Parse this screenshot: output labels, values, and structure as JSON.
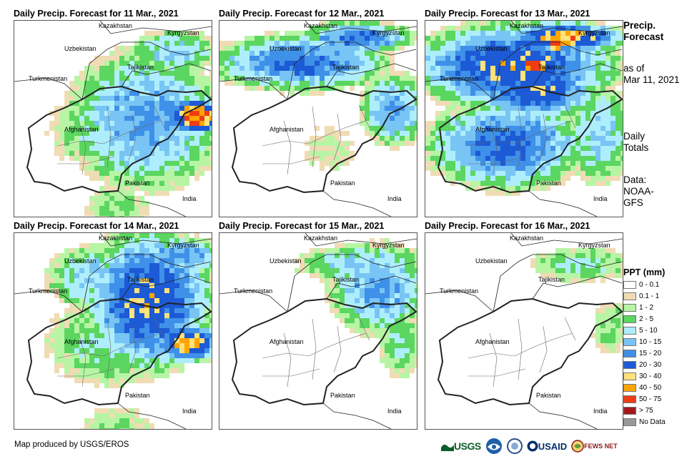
{
  "panels": [
    {
      "title": "Daily Precip. Forecast for 11 Mar., 2021"
    },
    {
      "title": "Daily Precip. Forecast for 12 Mar., 2021"
    },
    {
      "title": "Daily Precip. Forecast for 13 Mar., 2021"
    },
    {
      "title": "Daily Precip. Forecast for 14 Mar., 2021"
    },
    {
      "title": "Daily Precip. Forecast for 15 Mar., 2021"
    },
    {
      "title": "Daily Precip. Forecast for 16 Mar., 2021"
    }
  ],
  "map_labels": {
    "kazakhstan": "Kazakhstan",
    "kyrgyzstan": "Kyrgyzstan",
    "uzbekistan": "Uzbekistan",
    "tajikistan": "Tajikistan",
    "turkmenistan": "Turkmenistan",
    "afghanistan": "Afghanistan",
    "pakistan": "Pakistan",
    "india": "India"
  },
  "sidebar": {
    "heading_line1": "Precip.",
    "heading_line2": "Forecast",
    "asof_line1": "as of",
    "asof_line2": "Mar 11, 2021",
    "totals_line1": "Daily",
    "totals_line2": "Totals",
    "data_line1": "Data:",
    "data_line2": "NOAA-",
    "data_line3": "GFS"
  },
  "legend": {
    "title": "PPT (mm)",
    "items": [
      {
        "label": "0 - 0.1",
        "color": "#ffffff"
      },
      {
        "label": "0.1 - 1",
        "color": "#f0dcb4"
      },
      {
        "label": "1 - 2",
        "color": "#b7f5a5"
      },
      {
        "label": "2 - 5",
        "color": "#5bd660"
      },
      {
        "label": "5 - 10",
        "color": "#aeeefc"
      },
      {
        "label": "10 - 15",
        "color": "#78c5f5"
      },
      {
        "label": "15 - 20",
        "color": "#3f90e8"
      },
      {
        "label": "20 - 30",
        "color": "#1c5ad6"
      },
      {
        "label": "30 - 40",
        "color": "#ffe27a"
      },
      {
        "label": "40 - 50",
        "color": "#ffa500"
      },
      {
        "label": "50 - 75",
        "color": "#f03c14"
      },
      {
        "label": "> 75",
        "color": "#a3171c"
      },
      {
        "label": "No Data",
        "color": "#999999"
      }
    ]
  },
  "footer": {
    "credit": "Map produced by USGS/EROS",
    "logo_usgs": "USGS",
    "logo_usaid": "USAID",
    "logo_fews": "FEWS NET"
  }
}
